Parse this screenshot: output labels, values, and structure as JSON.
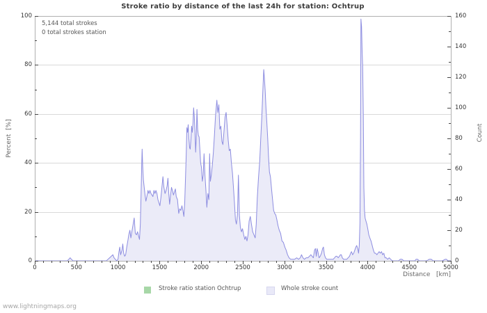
{
  "page": {
    "watermark": "www.lightningmaps.org"
  },
  "colors": {
    "background": "#ffffff",
    "frame": "#b0b0b0",
    "grid": "#d9d9d9",
    "tick": "#444444",
    "tick_label": "#333333",
    "title": "#3c3c3c",
    "text": "#555555",
    "watermark": "#a6a6a6",
    "count_line": "#8c8ce0",
    "count_fill": "#ebebf8",
    "ratio_green": "#a7d7a7"
  },
  "chart_data": {
    "type": "area",
    "title": "Stroke ratio by distance of the last 24h for station: Ochtrup",
    "annotations": [
      "5,144 total strokes",
      "0 total strokes station"
    ],
    "xlabel": "Distance   [km]",
    "ylabel_left": "Percent  [%]",
    "ylabel_right": "Count",
    "xlim": [
      0,
      5000
    ],
    "x_ticks": [
      0,
      500,
      1000,
      1500,
      2000,
      2500,
      3000,
      3500,
      4000,
      4500,
      5000
    ],
    "x_minor_step": 100,
    "ylim_left": [
      0,
      100
    ],
    "y_left_ticks": [
      0,
      20,
      40,
      60,
      80,
      100
    ],
    "y_left_minor_step": 10,
    "ylim_right": [
      0,
      160
    ],
    "y_right_ticks": [
      0,
      20,
      40,
      60,
      80,
      100,
      120,
      140,
      160
    ],
    "y_right_minor_step": 10,
    "grid": "horizontal-major",
    "legend_position": "bottom-center",
    "legend": [
      {
        "label": "Stroke ratio station Ochtrup",
        "color": "#a7d7a7"
      },
      {
        "label": "Whole stroke count",
        "color": "#e9e9f8"
      }
    ],
    "series": [
      {
        "name": "Stroke ratio station Ochtrup",
        "axis": "left",
        "style": "line",
        "color": "#a7d7a7",
        "points": [
          [
            0,
            0
          ],
          [
            5000,
            0
          ]
        ]
      },
      {
        "name": "Whole stroke count",
        "axis": "right",
        "style": "area",
        "line_color": "#8c8ce0",
        "fill_color": "#ebebf8",
        "points": [
          [
            0,
            0
          ],
          [
            200,
            0
          ],
          [
            390,
            0
          ],
          [
            410,
            1
          ],
          [
            425,
            2
          ],
          [
            440,
            1
          ],
          [
            460,
            0
          ],
          [
            700,
            0
          ],
          [
            860,
            0
          ],
          [
            880,
            1
          ],
          [
            900,
            2
          ],
          [
            920,
            3
          ],
          [
            938,
            4
          ],
          [
            952,
            2
          ],
          [
            968,
            1
          ],
          [
            985,
            0
          ],
          [
            1000,
            1
          ],
          [
            1012,
            6
          ],
          [
            1022,
            9
          ],
          [
            1032,
            4
          ],
          [
            1048,
            7
          ],
          [
            1058,
            11
          ],
          [
            1068,
            5
          ],
          [
            1080,
            3
          ],
          [
            1092,
            4
          ],
          [
            1105,
            9
          ],
          [
            1118,
            13
          ],
          [
            1130,
            17
          ],
          [
            1143,
            20
          ],
          [
            1155,
            15
          ],
          [
            1170,
            20
          ],
          [
            1182,
            24
          ],
          [
            1195,
            28
          ],
          [
            1208,
            18
          ],
          [
            1222,
            17
          ],
          [
            1235,
            19
          ],
          [
            1248,
            16
          ],
          [
            1258,
            14
          ],
          [
            1268,
            24
          ],
          [
            1277,
            42
          ],
          [
            1284,
            61
          ],
          [
            1290,
            73
          ],
          [
            1297,
            62
          ],
          [
            1305,
            53
          ],
          [
            1315,
            48
          ],
          [
            1325,
            43
          ],
          [
            1335,
            39
          ],
          [
            1347,
            42
          ],
          [
            1360,
            46
          ],
          [
            1372,
            44
          ],
          [
            1384,
            46
          ],
          [
            1396,
            44
          ],
          [
            1408,
            43
          ],
          [
            1420,
            42
          ],
          [
            1432,
            46
          ],
          [
            1444,
            44
          ],
          [
            1456,
            46
          ],
          [
            1468,
            44
          ],
          [
            1480,
            40
          ],
          [
            1492,
            38
          ],
          [
            1503,
            36
          ],
          [
            1515,
            41
          ],
          [
            1528,
            48
          ],
          [
            1540,
            55
          ],
          [
            1552,
            48
          ],
          [
            1565,
            44
          ],
          [
            1578,
            46
          ],
          [
            1590,
            49
          ],
          [
            1600,
            54
          ],
          [
            1610,
            44
          ],
          [
            1620,
            37
          ],
          [
            1632,
            43
          ],
          [
            1643,
            48
          ],
          [
            1654,
            46
          ],
          [
            1666,
            43
          ],
          [
            1678,
            45
          ],
          [
            1690,
            47
          ],
          [
            1700,
            42
          ],
          [
            1715,
            40
          ],
          [
            1730,
            31
          ],
          [
            1742,
            34
          ],
          [
            1755,
            33
          ],
          [
            1768,
            36
          ],
          [
            1780,
            33
          ],
          [
            1792,
            29
          ],
          [
            1802,
            38
          ],
          [
            1812,
            55
          ],
          [
            1820,
            70
          ],
          [
            1828,
            87
          ],
          [
            1836,
            84
          ],
          [
            1844,
            89
          ],
          [
            1852,
            80
          ],
          [
            1860,
            74
          ],
          [
            1868,
            73
          ],
          [
            1877,
            80
          ],
          [
            1885,
            88
          ],
          [
            1893,
            84
          ],
          [
            1901,
            90
          ],
          [
            1909,
            100
          ],
          [
            1917,
            94
          ],
          [
            1925,
            85
          ],
          [
            1933,
            71
          ],
          [
            1941,
            80
          ],
          [
            1949,
            99
          ],
          [
            1957,
            86
          ],
          [
            1966,
            82
          ],
          [
            1975,
            81
          ],
          [
            1985,
            72
          ],
          [
            1993,
            64
          ],
          [
            2003,
            61
          ],
          [
            2013,
            52
          ],
          [
            2024,
            56
          ],
          [
            2034,
            70
          ],
          [
            2045,
            56
          ],
          [
            2057,
            46
          ],
          [
            2068,
            35
          ],
          [
            2080,
            44
          ],
          [
            2092,
            40
          ],
          [
            2101,
            70
          ],
          [
            2110,
            52
          ],
          [
            2121,
            56
          ],
          [
            2133,
            62
          ],
          [
            2146,
            71
          ],
          [
            2159,
            82
          ],
          [
            2172,
            95
          ],
          [
            2188,
            105
          ],
          [
            2200,
            97
          ],
          [
            2212,
            102
          ],
          [
            2224,
            86
          ],
          [
            2237,
            88
          ],
          [
            2249,
            78
          ],
          [
            2261,
            76
          ],
          [
            2274,
            85
          ],
          [
            2287,
            94
          ],
          [
            2299,
            97
          ],
          [
            2311,
            89
          ],
          [
            2324,
            79
          ],
          [
            2337,
            72
          ],
          [
            2350,
            73
          ],
          [
            2363,
            64
          ],
          [
            2376,
            57
          ],
          [
            2389,
            47
          ],
          [
            2400,
            38
          ],
          [
            2411,
            27
          ],
          [
            2423,
            24
          ],
          [
            2436,
            30
          ],
          [
            2447,
            56
          ],
          [
            2459,
            30
          ],
          [
            2471,
            22
          ],
          [
            2484,
            19
          ],
          [
            2497,
            21
          ],
          [
            2511,
            17
          ],
          [
            2524,
            14
          ],
          [
            2537,
            16
          ],
          [
            2550,
            13
          ],
          [
            2563,
            17
          ],
          [
            2576,
            26
          ],
          [
            2590,
            29
          ],
          [
            2604,
            24
          ],
          [
            2619,
            19
          ],
          [
            2634,
            17
          ],
          [
            2649,
            15
          ],
          [
            2661,
            24
          ],
          [
            2674,
            41
          ],
          [
            2688,
            54
          ],
          [
            2703,
            65
          ],
          [
            2716,
            80
          ],
          [
            2729,
            95
          ],
          [
            2740,
            110
          ],
          [
            2752,
            125
          ],
          [
            2760,
            119
          ],
          [
            2769,
            111
          ],
          [
            2779,
            99
          ],
          [
            2789,
            90
          ],
          [
            2799,
            80
          ],
          [
            2809,
            68
          ],
          [
            2820,
            58
          ],
          [
            2832,
            55
          ],
          [
            2845,
            47
          ],
          [
            2858,
            40
          ],
          [
            2870,
            33
          ],
          [
            2883,
            31
          ],
          [
            2896,
            30
          ],
          [
            2909,
            27
          ],
          [
            2923,
            23
          ],
          [
            2938,
            20
          ],
          [
            2954,
            18
          ],
          [
            2971,
            13
          ],
          [
            2988,
            12
          ],
          [
            3005,
            9
          ],
          [
            3021,
            7
          ],
          [
            3038,
            4
          ],
          [
            3056,
            2
          ],
          [
            3075,
            1
          ],
          [
            3098,
            1
          ],
          [
            3122,
            1
          ],
          [
            3148,
            2
          ],
          [
            3170,
            1
          ],
          [
            3191,
            2
          ],
          [
            3206,
            4
          ],
          [
            3222,
            2
          ],
          [
            3241,
            1
          ],
          [
            3261,
            2
          ],
          [
            3282,
            2
          ],
          [
            3302,
            3
          ],
          [
            3318,
            4
          ],
          [
            3333,
            3
          ],
          [
            3348,
            2
          ],
          [
            3362,
            7
          ],
          [
            3373,
            8
          ],
          [
            3383,
            3
          ],
          [
            3393,
            8
          ],
          [
            3403,
            6
          ],
          [
            3416,
            2
          ],
          [
            3431,
            3
          ],
          [
            3446,
            5
          ],
          [
            3459,
            8
          ],
          [
            3469,
            9
          ],
          [
            3481,
            4
          ],
          [
            3493,
            2
          ],
          [
            3509,
            1
          ],
          [
            3526,
            1
          ],
          [
            3546,
            1
          ],
          [
            3566,
            1
          ],
          [
            3586,
            1
          ],
          [
            3603,
            2
          ],
          [
            3619,
            3
          ],
          [
            3631,
            3
          ],
          [
            3646,
            2
          ],
          [
            3661,
            3
          ],
          [
            3673,
            4
          ],
          [
            3684,
            4
          ],
          [
            3696,
            2
          ],
          [
            3711,
            1
          ],
          [
            3729,
            1
          ],
          [
            3749,
            1
          ],
          [
            3766,
            2
          ],
          [
            3783,
            3
          ],
          [
            3796,
            5
          ],
          [
            3807,
            6
          ],
          [
            3819,
            4
          ],
          [
            3833,
            5
          ],
          [
            3846,
            7
          ],
          [
            3859,
            9
          ],
          [
            3869,
            10
          ],
          [
            3881,
            8
          ],
          [
            3891,
            5
          ],
          [
            3900,
            10
          ],
          [
            3908,
            25
          ],
          [
            3915,
            80
          ],
          [
            3920,
            158
          ],
          [
            3927,
            153
          ],
          [
            3934,
            137
          ],
          [
            3941,
            127
          ],
          [
            3948,
            95
          ],
          [
            3955,
            48
          ],
          [
            3962,
            33
          ],
          [
            3970,
            28
          ],
          [
            3980,
            26
          ],
          [
            3991,
            24
          ],
          [
            4002,
            21
          ],
          [
            4014,
            17
          ],
          [
            4027,
            15
          ],
          [
            4041,
            13
          ],
          [
            4055,
            10
          ],
          [
            4069,
            7
          ],
          [
            4083,
            5
          ],
          [
            4097,
            5
          ],
          [
            4111,
            4
          ],
          [
            4125,
            5
          ],
          [
            4139,
            6
          ],
          [
            4153,
            5
          ],
          [
            4167,
            6
          ],
          [
            4181,
            4
          ],
          [
            4195,
            5
          ],
          [
            4209,
            2
          ],
          [
            4224,
            2
          ],
          [
            4241,
            1
          ],
          [
            4259,
            2
          ],
          [
            4278,
            1
          ],
          [
            4297,
            0
          ],
          [
            4340,
            0
          ],
          [
            4372,
            0
          ],
          [
            4392,
            1
          ],
          [
            4413,
            1
          ],
          [
            4436,
            0
          ],
          [
            4480,
            0
          ],
          [
            4530,
            0
          ],
          [
            4568,
            0
          ],
          [
            4582,
            1
          ],
          [
            4600,
            1
          ],
          [
            4620,
            0
          ],
          [
            4665,
            0
          ],
          [
            4710,
            0
          ],
          [
            4740,
            1
          ],
          [
            4764,
            1
          ],
          [
            4790,
            0
          ],
          [
            4845,
            0
          ],
          [
            4898,
            0
          ],
          [
            4932,
            1
          ],
          [
            4948,
            1
          ],
          [
            4966,
            0
          ],
          [
            5000,
            0
          ]
        ]
      }
    ]
  }
}
